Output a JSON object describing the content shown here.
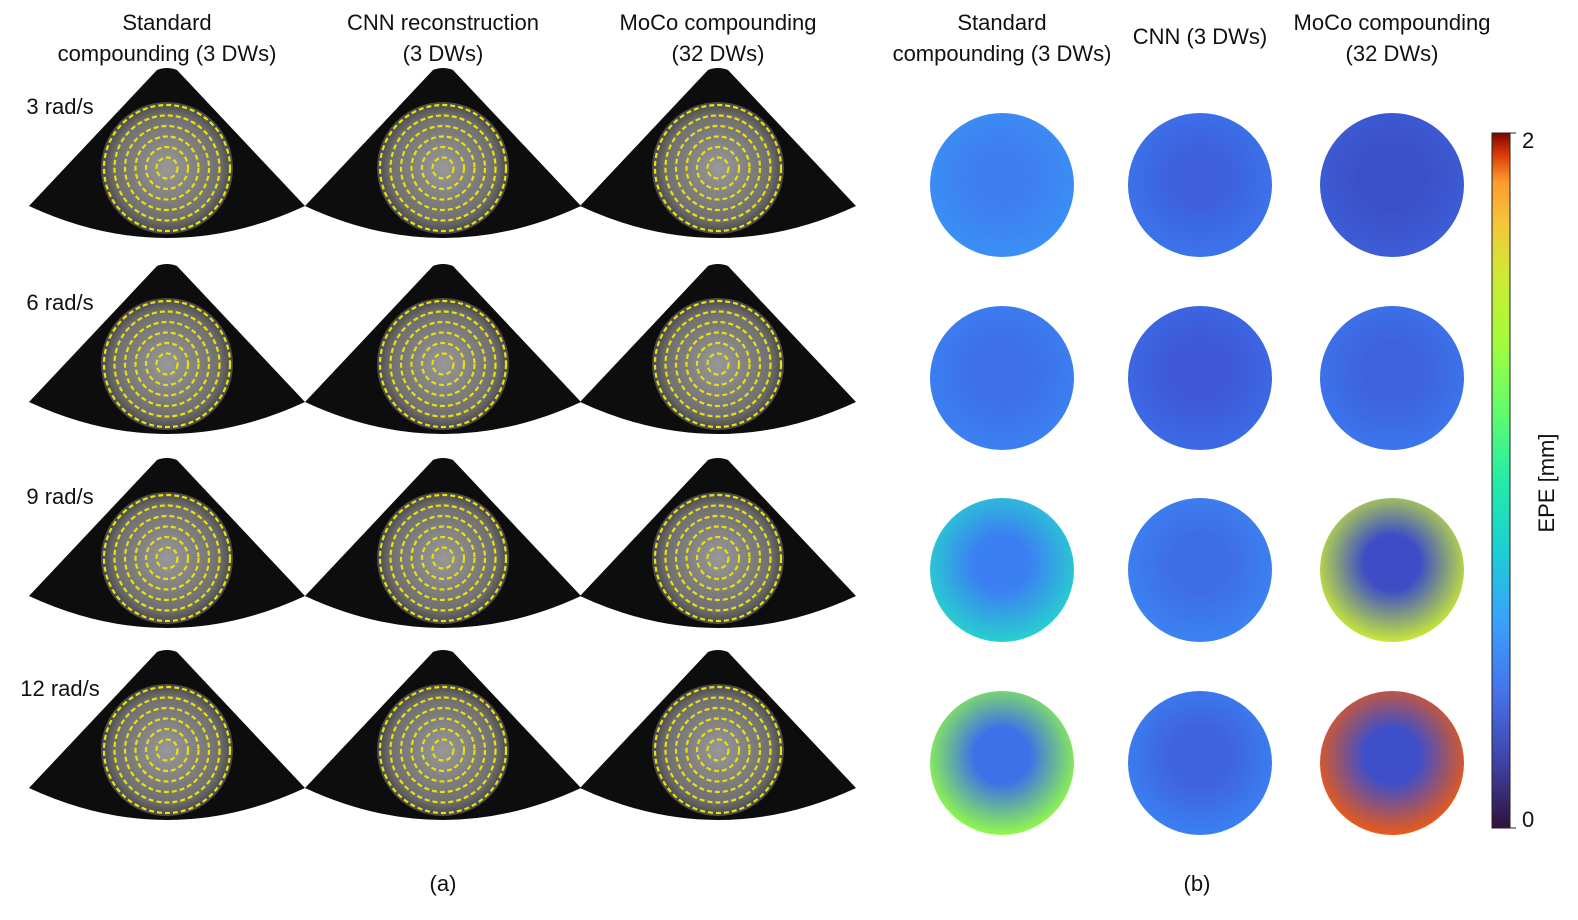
{
  "panel_a": {
    "headers": [
      [
        "Standard",
        "compounding (3 DWs)"
      ],
      [
        "CNN reconstruction",
        "(3 DWs)"
      ],
      [
        "MoCo compounding",
        "(32 DWs)"
      ]
    ],
    "rows": [
      "3 rad/s",
      "6 rad/s",
      "9 rad/s",
      "12 rad/s"
    ],
    "caption": "(a)"
  },
  "panel_b": {
    "headers": [
      [
        "Standard",
        "compounding (3 DWs)"
      ],
      [
        "CNN (3 DWs)"
      ],
      [
        "MoCo compounding",
        "(32 DWs)"
      ]
    ],
    "caption": "(b)"
  },
  "chart_data": {
    "type": "colorbar",
    "ylabel": "EPE [mm]",
    "ylim": [
      0,
      2
    ],
    "yticks": [
      0,
      2
    ]
  }
}
